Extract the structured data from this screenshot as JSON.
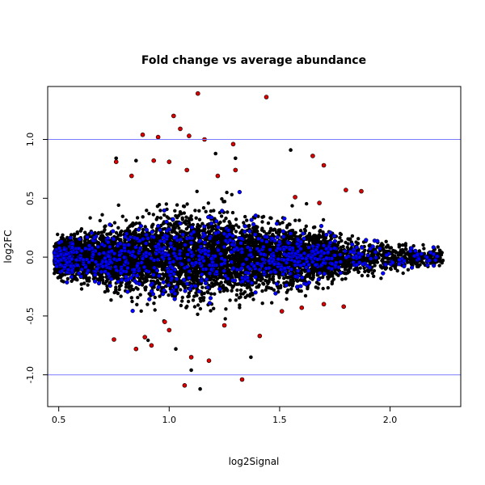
{
  "chart_data": {
    "type": "scatter",
    "title": "Fold change vs average abundance",
    "xlabel": "log2Signal",
    "ylabel": "log2FC",
    "xlim": [
      0.45,
      2.32
    ],
    "ylim": [
      -1.27,
      1.45
    ],
    "x_ticks": [
      0.5,
      1.0,
      1.5,
      2.0
    ],
    "x_tick_labels": [
      "0.5",
      "1.0",
      "1.5",
      "2.0"
    ],
    "y_ticks": [
      -1.0,
      -0.5,
      0.0,
      0.5,
      1.0
    ],
    "y_tick_labels": [
      "-1.0",
      "-0.5",
      "0.0",
      "0.5",
      "1.0"
    ],
    "grid": false,
    "reference_lines": [
      {
        "y": 1.0,
        "color": "#7b7bff"
      },
      {
        "y": -1.0,
        "color": "#7b7bff"
      }
    ],
    "colors": {
      "black": "#000000",
      "blue": "#0000ff",
      "red": "#dd0000"
    },
    "highlight_points": {
      "red": [
        [
          0.88,
          1.04
        ],
        [
          0.95,
          1.02
        ],
        [
          1.02,
          1.2
        ],
        [
          1.05,
          1.09
        ],
        [
          1.13,
          1.39
        ],
        [
          1.16,
          1.0
        ],
        [
          1.29,
          0.96
        ],
        [
          1.44,
          1.36
        ],
        [
          1.09,
          1.03
        ],
        [
          1.65,
          0.86
        ],
        [
          1.7,
          0.78
        ],
        [
          0.93,
          0.82
        ],
        [
          1.0,
          0.81
        ],
        [
          1.08,
          0.74
        ],
        [
          1.22,
          0.69
        ],
        [
          1.3,
          0.74
        ],
        [
          0.76,
          0.81
        ],
        [
          0.83,
          0.69
        ],
        [
          1.8,
          0.57
        ],
        [
          1.87,
          0.56
        ],
        [
          1.57,
          0.51
        ],
        [
          1.68,
          0.46
        ],
        [
          0.75,
          -0.7
        ],
        [
          0.85,
          -0.78
        ],
        [
          0.92,
          -0.75
        ],
        [
          1.0,
          -0.62
        ],
        [
          1.1,
          -0.85
        ],
        [
          1.18,
          -0.88
        ],
        [
          1.33,
          -1.04
        ],
        [
          1.07,
          -1.09
        ],
        [
          1.41,
          -0.67
        ],
        [
          1.6,
          -0.43
        ],
        [
          1.79,
          -0.42
        ],
        [
          0.98,
          -0.55
        ],
        [
          1.25,
          -0.58
        ],
        [
          0.89,
          -0.68
        ],
        [
          1.51,
          -0.46
        ],
        [
          1.7,
          -0.4
        ]
      ],
      "black": [
        [
          1.55,
          0.91
        ],
        [
          1.21,
          0.88
        ],
        [
          0.76,
          0.84
        ],
        [
          1.1,
          -0.96
        ],
        [
          1.14,
          -1.12
        ],
        [
          1.03,
          -0.78
        ],
        [
          1.37,
          -0.85
        ],
        [
          0.85,
          0.82
        ],
        [
          1.3,
          0.84
        ]
      ]
    },
    "point_cloud": {
      "n": 7000,
      "x_range": [
        0.48,
        2.24
      ],
      "blue_fraction": 0.12,
      "description_of_spread": "dense band centred on y = 0; spread grows to about ±0.45 near x = 1.0–1.2 and narrows toward both ends"
    }
  }
}
